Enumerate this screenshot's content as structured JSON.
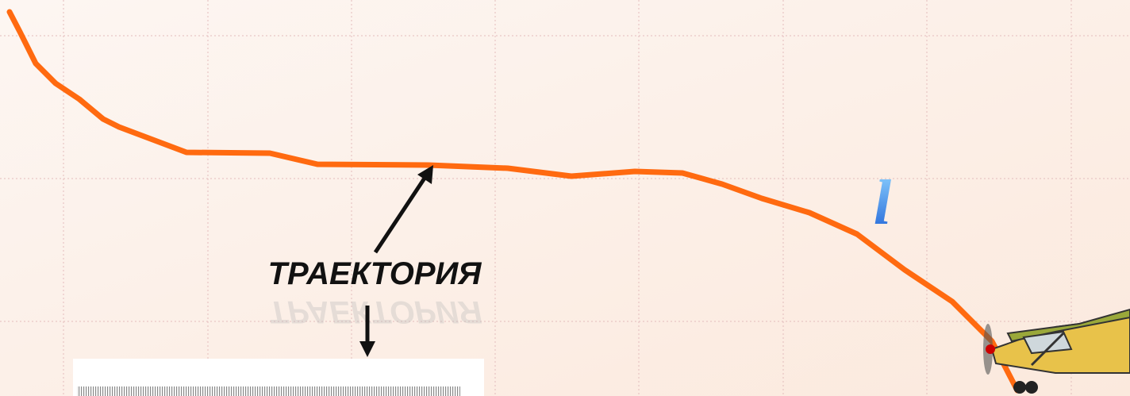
{
  "label": "ТРАЕКТОРИЯ",
  "path_label": "l"
}
